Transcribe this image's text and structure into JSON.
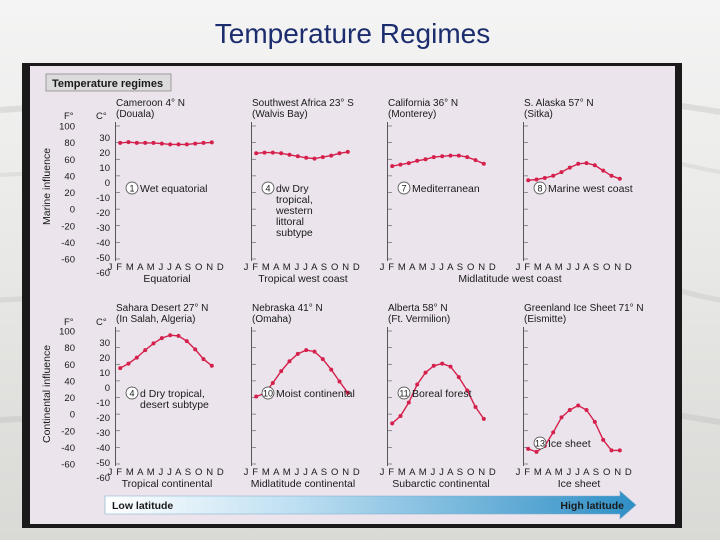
{
  "slide_title": "Temperature Regimes",
  "figure_title": "Temperature regimes",
  "row_labels": [
    "Marine influence",
    "Continental influence"
  ],
  "unit_f": "F°",
  "unit_c": "C°",
  "f_ticks": [
    100,
    80,
    60,
    40,
    20,
    0,
    -20,
    -40,
    -60
  ],
  "c_ticks": [
    30,
    20,
    10,
    0,
    -10,
    -20,
    -30,
    -40,
    -50,
    -60
  ],
  "months": "J F M A M J J A S O N D",
  "group_labels": {
    "equatorial": "Equatorial",
    "tropical_west": "Tropical west coast",
    "midlat_west": "Midlatitude west coast",
    "tropical_cont": "Tropical continental",
    "midlat_cont": "Midlatitude continental",
    "subarctic_cont": "Subarctic continental",
    "ice_sheet": "Ice sheet"
  },
  "arrow": {
    "left": "Low latitude",
    "right": "High latitude"
  },
  "colors": {
    "curve": "#d5204c",
    "arrow": "#2f8fc6",
    "badge": "#ffffff"
  },
  "chart_data": {
    "type": "line",
    "y_unit": "°C",
    "ylim": [
      -60,
      35
    ],
    "x": [
      "J",
      "F",
      "M",
      "A",
      "M",
      "J",
      "J",
      "A",
      "S",
      "O",
      "N",
      "D"
    ],
    "panels": [
      {
        "station": "Cameroon 4° N",
        "place": "(Douala)",
        "climate_no": "1",
        "climate": "Wet equatorial",
        "values": [
          26.5,
          27,
          26.5,
          26.5,
          26.5,
          26,
          25.5,
          25.5,
          25.5,
          26,
          26.5,
          26.8
        ]
      },
      {
        "station": "Southwest Africa 23° S",
        "place": "(Walvis Bay)",
        "climate_no": "4",
        "climate": "dw Dry tropical, western littoral subtype",
        "values": [
          19.5,
          20,
          20,
          19.5,
          18.5,
          17.5,
          16.5,
          16,
          17,
          18,
          19.5,
          20.5
        ]
      },
      {
        "station": "California 36° N",
        "place": "(Monterey)",
        "climate_no": "7",
        "climate": "Mediterranean",
        "values": [
          11,
          12,
          13,
          14.5,
          15.5,
          17,
          17.5,
          18,
          18,
          17,
          15,
          12.5
        ]
      },
      {
        "station": "S. Alaska 57° N",
        "place": "(Sitka)",
        "climate_no": "8",
        "climate": "Marine west coast",
        "values": [
          1.5,
          2,
          3,
          4.5,
          7,
          10,
          12.5,
          13,
          11.5,
          8,
          4.5,
          2.5
        ]
      },
      {
        "station": "Sahara Desert 27° N",
        "place": "(In Salah, Algeria)",
        "climate_no": "4",
        "climate": "d Dry tropical, desert subtype",
        "values": [
          13,
          16,
          20,
          25,
          29.5,
          33,
          35,
          34.5,
          31,
          25.5,
          19,
          14.5
        ]
      },
      {
        "station": "Nebraska 41° N",
        "place": "(Omaha)",
        "climate_no": "10",
        "climate": "Moist continental",
        "values": [
          -6,
          -4,
          3,
          11,
          17.5,
          22.5,
          25,
          24,
          19,
          12,
          4,
          -3.5
        ]
      },
      {
        "station": "Alberta 58° N",
        "place": "(Ft. Vermilion)",
        "climate_no": "11",
        "climate": "Boreal forest",
        "values": [
          -24,
          -19,
          -10,
          2,
          10,
          14.5,
          16,
          14,
          7,
          -2,
          -13,
          -21
        ]
      },
      {
        "station": "Greenland Ice Sheet 71° N",
        "place": "(Eismitte)",
        "climate_no": "13",
        "climate": "Ice sheet",
        "values": [
          -41,
          -43,
          -39,
          -30,
          -20,
          -15,
          -12,
          -15,
          -23,
          -35,
          -42,
          -42
        ]
      }
    ]
  }
}
